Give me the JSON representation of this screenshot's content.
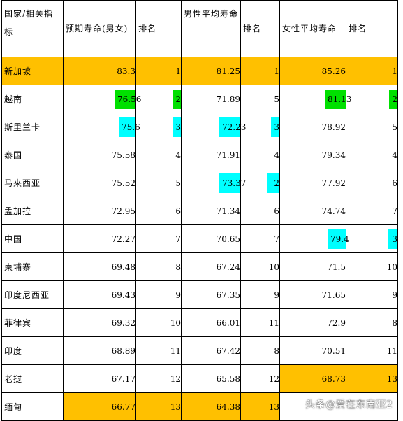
{
  "headers": {
    "country": "国家/相关指标",
    "life_both": "预期寿命(男女)",
    "rank1": "排名",
    "life_male": "男性平均寿命",
    "rank2": "排名",
    "life_female": "女性平均寿命",
    "rank3": "排名"
  },
  "rows": [
    {
      "name": "新加坡",
      "both": "83.3",
      "r1": "1",
      "male": "81.25",
      "r2": "1",
      "female": "85.26",
      "r3": "1"
    },
    {
      "name": "越南",
      "both": "76.56",
      "r1": "2",
      "male": "71.89",
      "r2": "5",
      "female": "81.13",
      "r3": "2"
    },
    {
      "name": "斯里兰卡",
      "both": "75.6",
      "r1": "3",
      "male": "72.23",
      "r2": "3",
      "female": "78.92",
      "r3": "5"
    },
    {
      "name": "泰国",
      "both": "75.58",
      "r1": "4",
      "male": "71.91",
      "r2": "4",
      "female": "79.34",
      "r3": "4"
    },
    {
      "name": "马来西亚",
      "both": "75.52",
      "r1": "5",
      "male": "73.37",
      "r2": "2",
      "female": "77.92",
      "r3": "6"
    },
    {
      "name": "孟加拉",
      "both": "72.95",
      "r1": "6",
      "male": "71.34",
      "r2": "6",
      "female": "74.74",
      "r3": "7"
    },
    {
      "name": "中国",
      "both": "72.27",
      "r1": "7",
      "male": "70.65",
      "r2": "7",
      "female": "79.4",
      "r3": "3"
    },
    {
      "name": "柬埔寨",
      "both": "69.48",
      "r1": "8",
      "male": "67.24",
      "r2": "10",
      "female": "71.5",
      "r3": "10"
    },
    {
      "name": "印度尼西亚",
      "both": "69.43",
      "r1": "9",
      "male": "67.35",
      "r2": "9",
      "female": "71.65",
      "r3": "9"
    },
    {
      "name": "菲律宾",
      "both": "69.32",
      "r1": "10",
      "male": "66.01",
      "r2": "11",
      "female": "72.9",
      "r3": "8"
    },
    {
      "name": "印度",
      "both": "68.89",
      "r1": "11",
      "male": "67.42",
      "r2": "8",
      "female": "70.51",
      "r3": "11"
    },
    {
      "name": "老挝",
      "both": "67.17",
      "r1": "12",
      "male": "65.58",
      "r2": "12",
      "female": "68.73",
      "r3": "13"
    },
    {
      "name": "缅甸",
      "both": "66.77",
      "r1": "13",
      "male": "64.38",
      "r2": "13",
      "female": "",
      "r3": ""
    }
  ],
  "colors": {
    "orange": "#ffc000",
    "green": "#00e000",
    "cyan": "#00ffff"
  },
  "watermark": "头条@爱在东南亚2"
}
